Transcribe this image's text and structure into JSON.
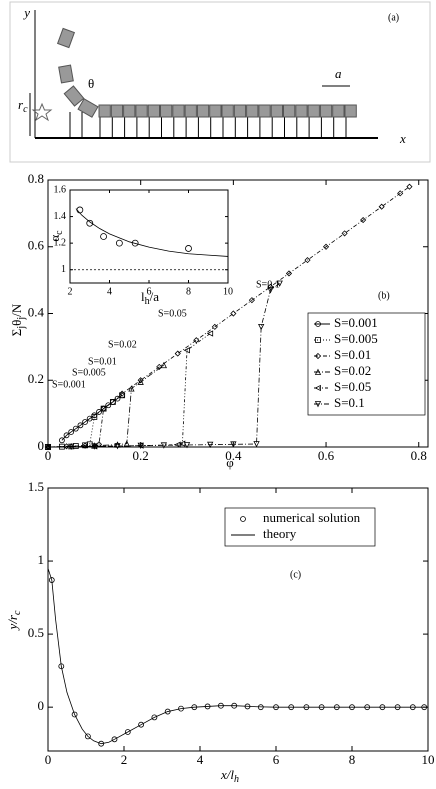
{
  "diagram": {
    "label": "(a)",
    "y_axis": "y",
    "x_axis": "x",
    "angle": "θ",
    "spacing": "a",
    "radius": [
      "r",
      "c"
    ]
  },
  "chart_data": [
    {
      "type": "line",
      "panel": "(b)",
      "xlabel": [
        "φ"
      ],
      "ylabel": [
        "Σ",
        "j",
        "θ",
        "j",
        "/N"
      ],
      "xlim": [
        0,
        0.82
      ],
      "ylim": [
        0,
        0.8
      ],
      "xticks": [
        0,
        0.2,
        0.4,
        0.6,
        0.8
      ],
      "yticks": [
        0,
        0.2,
        0.4,
        0.6,
        0.8
      ],
      "annotations": [
        "S=0.001",
        "S=0.005",
        "S=0.01",
        "S=0.02",
        "S=0.05",
        "S=0.1"
      ],
      "series": [
        {
          "name": "S=0.001",
          "marker": "circle",
          "x": [
            0.03,
            0.04,
            0.05,
            0.06,
            0.07,
            0.08,
            0.09,
            0.1,
            0.11,
            0.12,
            0.13,
            0.14,
            0.15,
            0.16
          ],
          "values": [
            0.02,
            0.035,
            0.045,
            0.055,
            0.065,
            0.075,
            0.085,
            0.095,
            0.105,
            0.115,
            0.125,
            0.135,
            0.145,
            0.155
          ]
        },
        {
          "name": "S=0.005",
          "marker": "square",
          "x": [
            0,
            0.03,
            0.06,
            0.08,
            0.09,
            0.1,
            0.12,
            0.14,
            0.16
          ],
          "values": [
            0,
            0.001,
            0.003,
            0.005,
            0.008,
            0.09,
            0.115,
            0.135,
            0.155
          ]
        },
        {
          "name": "S=0.01",
          "marker": "diamond",
          "x": [
            0,
            0.04,
            0.08,
            0.11,
            0.12,
            0.16,
            0.2,
            0.24,
            0.28,
            0.32,
            0.36,
            0.4,
            0.44,
            0.48,
            0.52,
            0.56,
            0.6,
            0.64,
            0.68,
            0.72,
            0.76,
            0.78
          ],
          "values": [
            0,
            0.002,
            0.004,
            0.008,
            0.115,
            0.16,
            0.2,
            0.24,
            0.28,
            0.32,
            0.36,
            0.4,
            0.44,
            0.48,
            0.52,
            0.56,
            0.6,
            0.64,
            0.68,
            0.72,
            0.76,
            0.78
          ]
        },
        {
          "name": "S=0.02",
          "marker": "triangle-up",
          "x": [
            0,
            0.05,
            0.1,
            0.15,
            0.17,
            0.18,
            0.2,
            0.25
          ],
          "values": [
            0,
            0.002,
            0.004,
            0.007,
            0.01,
            0.175,
            0.195,
            0.245
          ]
        },
        {
          "name": "S=0.05",
          "marker": "triangle-left",
          "x": [
            0,
            0.1,
            0.2,
            0.28,
            0.29,
            0.3,
            0.35
          ],
          "values": [
            0,
            0.002,
            0.004,
            0.007,
            0.01,
            0.29,
            0.34
          ]
        },
        {
          "name": "S=0.1",
          "marker": "triangle-down",
          "x": [
            0,
            0.05,
            0.1,
            0.15,
            0.2,
            0.25,
            0.3,
            0.35,
            0.4,
            0.45,
            0.46,
            0.48,
            0.5
          ],
          "values": [
            0,
            0.001,
            0.002,
            0.003,
            0.004,
            0.005,
            0.006,
            0.007,
            0.008,
            0.009,
            0.36,
            0.47,
            0.49
          ]
        }
      ]
    },
    {
      "type": "line",
      "xlabel": [
        "l",
        "h",
        "/a"
      ],
      "ylabel": [
        "α",
        "c"
      ],
      "xlim": [
        2,
        10
      ],
      "ylim": [
        0.9,
        1.6
      ],
      "xticks": [
        2,
        4,
        6,
        8,
        10
      ],
      "yticks": [
        1,
        1.2,
        1.4,
        1.6
      ],
      "hline": 1,
      "series": [
        {
          "marker": "circle",
          "line": false,
          "x": [
            2.5,
            3,
            3.7,
            4.5,
            5.3,
            8
          ],
          "values": [
            1.45,
            1.35,
            1.25,
            1.2,
            1.2,
            1.16
          ]
        },
        {
          "marker": "none",
          "x": [
            2.3,
            2.6,
            3,
            3.5,
            4,
            4.5,
            5,
            6,
            7,
            8,
            9,
            10
          ],
          "values": [
            1.46,
            1.41,
            1.36,
            1.31,
            1.27,
            1.24,
            1.21,
            1.17,
            1.14,
            1.12,
            1.11,
            1.1
          ]
        }
      ]
    },
    {
      "type": "line",
      "panel": "(c)",
      "xlabel": [
        "x/l",
        "h"
      ],
      "ylabel": [
        "y/r",
        "c"
      ],
      "xlim": [
        0,
        10
      ],
      "ylim": [
        -0.3,
        1.5
      ],
      "xticks": [
        0,
        2,
        4,
        6,
        8,
        10
      ],
      "yticks": [
        0,
        0.5,
        1,
        1.5
      ],
      "series": [
        {
          "name": "numerical solution",
          "marker": "circle",
          "line": false,
          "x": [
            0.1,
            0.35,
            0.7,
            1.05,
            1.4,
            1.75,
            2.1,
            2.45,
            2.8,
            3.15,
            3.5,
            3.85,
            4.2,
            4.55,
            4.9,
            5.25,
            5.6,
            6.0,
            6.4,
            6.8,
            7.2,
            7.6,
            8.0,
            8.4,
            8.8,
            9.2,
            9.6,
            9.9
          ],
          "values": [
            0.87,
            0.28,
            -0.05,
            -0.2,
            -0.25,
            -0.22,
            -0.17,
            -0.12,
            -0.07,
            -0.03,
            -0.01,
            0,
            0.005,
            0.01,
            0.01,
            0.005,
            0,
            0,
            0,
            0,
            0,
            0,
            0,
            0,
            0,
            0,
            0,
            0
          ]
        },
        {
          "name": "theory",
          "marker": "none",
          "x": [
            0,
            0.1,
            0.2,
            0.35,
            0.5,
            0.7,
            0.9,
            1.05,
            1.2,
            1.4,
            1.6,
            1.75,
            2.1,
            2.45,
            2.8,
            3.15,
            3.5,
            3.85,
            4.2,
            4.55,
            4.9,
            5.5,
            6,
            7,
            8,
            9,
            10
          ],
          "values": [
            0.95,
            0.87,
            0.6,
            0.28,
            0.1,
            -0.05,
            -0.15,
            -0.2,
            -0.23,
            -0.25,
            -0.24,
            -0.22,
            -0.17,
            -0.12,
            -0.07,
            -0.03,
            -0.01,
            0,
            0.005,
            0.01,
            0.01,
            0.003,
            0,
            0,
            0,
            0,
            0
          ]
        }
      ]
    }
  ]
}
